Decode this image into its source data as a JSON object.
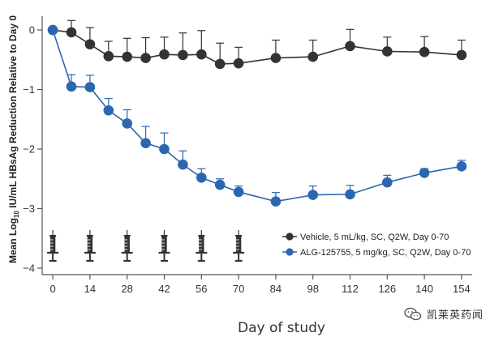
{
  "chart_data": {
    "type": "line",
    "title": "",
    "xlabel": "Day of study",
    "ylabel_parts": [
      "Mean Log",
      "10",
      " IU/mL HBsAg Reduction Relative to Day 0"
    ],
    "xlim": [
      -4,
      158
    ],
    "ylim": [
      -4,
      0.15
    ],
    "x_ticks": [
      0,
      14,
      28,
      42,
      56,
      70,
      84,
      98,
      112,
      126,
      140,
      154
    ],
    "y_ticks": [
      0,
      -1,
      -2,
      -3,
      -4
    ],
    "series": [
      {
        "name": "Vehicle, 5 mL/kg, SC, Q2W, Day 0-70",
        "color": "#333333",
        "x": [
          0,
          7,
          14,
          21,
          28,
          35,
          42,
          49,
          56,
          63,
          70,
          84,
          98,
          112,
          126,
          140,
          154
        ],
        "y": [
          0,
          -0.04,
          -0.24,
          -0.44,
          -0.45,
          -0.47,
          -0.41,
          -0.42,
          -0.41,
          -0.57,
          -0.56,
          -0.47,
          -0.45,
          -0.27,
          -0.36,
          -0.37,
          -0.42
        ],
        "err": [
          0,
          0.2,
          0.28,
          0.25,
          0.31,
          0.34,
          0.29,
          0.37,
          0.4,
          0.35,
          0.27,
          0.3,
          0.28,
          0.28,
          0.24,
          0.26,
          0.25
        ]
      },
      {
        "name": "ALG-125755, 5 mg/kg, SC, Q2W, Day 0-70",
        "color": "#2d66b0",
        "x": [
          0,
          7,
          14,
          21,
          28,
          35,
          42,
          49,
          56,
          63,
          70,
          84,
          98,
          112,
          126,
          140,
          154
        ],
        "y": [
          0,
          -0.95,
          -0.96,
          -1.35,
          -1.57,
          -1.9,
          -2.0,
          -2.26,
          -2.48,
          -2.6,
          -2.72,
          -2.88,
          -2.77,
          -2.76,
          -2.56,
          -2.4,
          -2.29
        ],
        "err": [
          0,
          0.2,
          0.2,
          0.2,
          0.23,
          0.28,
          0.27,
          0.23,
          0.15,
          0.1,
          0.1,
          0.15,
          0.15,
          0.15,
          0.12,
          0.07,
          0.1
        ]
      }
    ],
    "dosing_days": [
      0,
      14,
      28,
      42,
      56,
      70
    ],
    "dosing_icon": "syringe-icon",
    "legend_position": "bottom-right"
  },
  "watermark": {
    "icon": "wechat-icon",
    "text": "凯莱英药闻"
  }
}
